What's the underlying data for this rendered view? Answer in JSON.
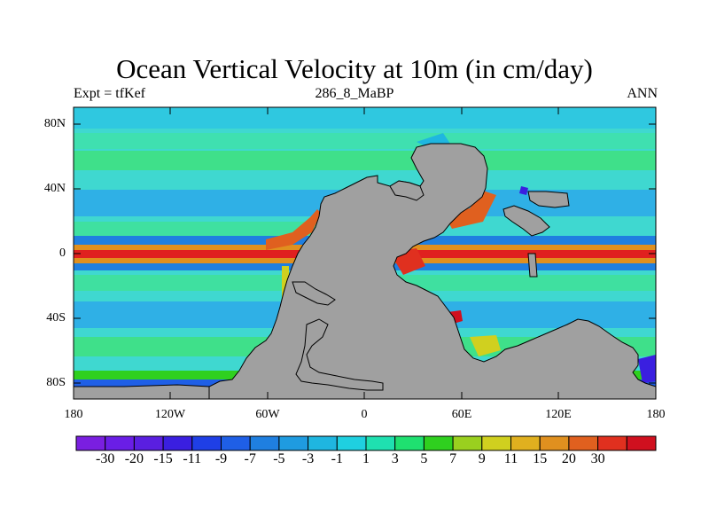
{
  "title": "Ocean Vertical Velocity at 10m (in cm/day)",
  "subtitle_left": "Expt = tfKef",
  "subtitle_center": "286_8_MaBP",
  "subtitle_right": "ANN",
  "lat_labels": [
    "80N",
    "40N",
    "0",
    "40S",
    "80S"
  ],
  "lon_labels": [
    "180",
    "120W",
    "60W",
    "0",
    "60E",
    "120E",
    "180"
  ],
  "colorbar": {
    "labels": [
      "-30",
      "-20",
      "-15",
      "-11",
      "-9",
      "-7",
      "-5",
      "-3",
      "-1",
      "1",
      "3",
      "5",
      "7",
      "9",
      "11",
      "15",
      "20",
      "30"
    ],
    "colors": [
      "#7a1fe0",
      "#6a1ee6",
      "#5a1fe0",
      "#3a1fe0",
      "#1f3fe6",
      "#1f5fe6",
      "#1f7fe0",
      "#1f9be0",
      "#1fb6e0",
      "#1fd0e0",
      "#1fe0b0",
      "#1fe070",
      "#2fd01f",
      "#9ad01f",
      "#d0d01f",
      "#e0b01f",
      "#e0901f",
      "#e0601f",
      "#e0301f",
      "#d0101f"
    ]
  },
  "map_colors": {
    "land": "#a0a0a0",
    "ocean_base": "#3fd8d0",
    "equator_high": "#e0201f"
  }
}
